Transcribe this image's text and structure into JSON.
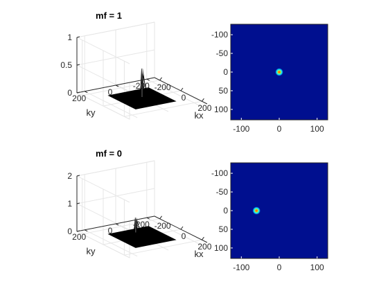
{
  "chart_data": [
    {
      "type": "surface3d",
      "title": "mf = 1",
      "xlabel": "kx",
      "ylabel": "ky",
      "zlabel": "",
      "xlim": [
        -250,
        250
      ],
      "ylim": [
        -250,
        250
      ],
      "zlim": [
        0,
        1
      ],
      "xticks": [
        -200,
        0,
        200
      ],
      "yticks": [
        -200,
        0,
        200
      ],
      "zticks": [
        0,
        0.5,
        1
      ],
      "xtick_labels": [
        "-200",
        "0",
        "200"
      ],
      "ytick_labels": [
        "-200",
        "0",
        "200"
      ],
      "ztick_labels": [
        "0",
        "0.5",
        "1"
      ],
      "peak": {
        "x": 0,
        "y": 0,
        "height": 0.55
      },
      "surface_color": "#000000",
      "grid": true
    },
    {
      "type": "heatmap",
      "title": "",
      "xlim": [
        -128,
        128
      ],
      "ylim": [
        -128,
        128
      ],
      "y_reversed": true,
      "xticks": [
        -100,
        0,
        100
      ],
      "yticks": [
        -100,
        -50,
        0,
        50,
        100
      ],
      "xtick_labels": [
        "-100",
        "0",
        "100"
      ],
      "ytick_labels": [
        "-100",
        "-50",
        "0",
        "50",
        "100"
      ],
      "spot": {
        "x": 0,
        "y": 0
      },
      "background_color": "#000f8f",
      "colormap": "jet"
    },
    {
      "type": "surface3d",
      "title": "mf = 0",
      "xlabel": "kx",
      "ylabel": "ky",
      "zlabel": "",
      "xlim": [
        -250,
        250
      ],
      "ylim": [
        -250,
        250
      ],
      "zlim": [
        0,
        2
      ],
      "xticks": [
        -200,
        0,
        200
      ],
      "yticks": [
        -200,
        0,
        200
      ],
      "zticks": [
        0,
        1,
        2
      ],
      "xtick_labels": [
        "-200",
        "0",
        "200"
      ],
      "ytick_labels": [
        "-200",
        "0",
        "200"
      ],
      "ztick_labels": [
        "0",
        "1",
        "2"
      ],
      "peak": {
        "x": -60,
        "y": 0,
        "height": 0.6
      },
      "surface_color": "#000000",
      "grid": true
    },
    {
      "type": "heatmap",
      "title": "",
      "xlim": [
        -128,
        128
      ],
      "ylim": [
        -128,
        128
      ],
      "y_reversed": true,
      "xticks": [
        -100,
        0,
        100
      ],
      "yticks": [
        -100,
        -50,
        0,
        50,
        100
      ],
      "xtick_labels": [
        "-100",
        "0",
        "100"
      ],
      "ytick_labels": [
        "-100",
        "-50",
        "0",
        "50",
        "100"
      ],
      "spot": {
        "x": -60,
        "y": 0
      },
      "background_color": "#000f8f",
      "colormap": "jet"
    }
  ]
}
